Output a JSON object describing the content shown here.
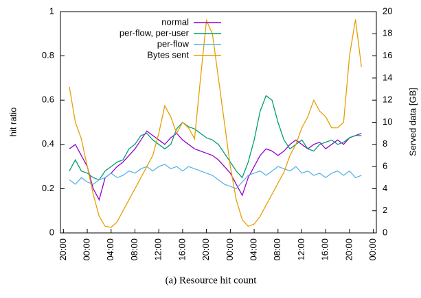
{
  "chart_data": {
    "type": "line",
    "caption": "(a) Resource hit count",
    "ylabel": "hit ratio",
    "y2label": "Served data [GB]",
    "x": [
      1,
      2,
      3,
      4,
      5,
      6,
      7,
      8,
      9,
      10,
      11,
      12,
      13,
      14,
      15,
      16,
      17,
      18,
      19,
      20,
      21,
      22,
      23,
      24,
      25,
      26,
      27,
      28,
      29,
      30,
      31,
      32,
      33,
      34,
      35,
      36,
      37,
      38,
      39,
      40,
      41,
      42,
      43,
      44,
      45,
      46,
      47,
      48,
      49,
      50
    ],
    "xlim": [
      -0.5,
      52.5
    ],
    "xticks": [
      {
        "value": 0,
        "label": "20:00"
      },
      {
        "value": 4,
        "label": "00:00"
      },
      {
        "value": 8,
        "label": "04:00"
      },
      {
        "value": 12,
        "label": "08:00"
      },
      {
        "value": 16,
        "label": "12:00"
      },
      {
        "value": 20,
        "label": "16:00"
      },
      {
        "value": 24,
        "label": "20:00"
      },
      {
        "value": 28,
        "label": "00:00"
      },
      {
        "value": 32,
        "label": "04:00"
      },
      {
        "value": 36,
        "label": "08:00"
      },
      {
        "value": 40,
        "label": "12:00"
      },
      {
        "value": 44,
        "label": "16:00"
      },
      {
        "value": 48,
        "label": "20:00"
      },
      {
        "value": 52,
        "label": "00:00"
      }
    ],
    "ylim": [
      0,
      1
    ],
    "yticks": [
      0,
      0.2,
      0.4,
      0.6,
      0.8,
      1
    ],
    "y2lim": [
      0,
      20
    ],
    "y2ticks": [
      0,
      2,
      4,
      6,
      8,
      10,
      12,
      14,
      16,
      18,
      20
    ],
    "legend": "upper center",
    "series": [
      {
        "name": "normal",
        "color": "#9400d3",
        "values": [
          0.38,
          0.4,
          0.35,
          0.3,
          0.2,
          0.15,
          0.25,
          0.27,
          0.3,
          0.32,
          0.35,
          0.38,
          0.42,
          0.46,
          0.44,
          0.42,
          0.4,
          0.43,
          0.45,
          0.42,
          0.4,
          0.38,
          0.37,
          0.36,
          0.35,
          0.33,
          0.3,
          0.27,
          0.22,
          0.17,
          0.25,
          0.3,
          0.35,
          0.38,
          0.37,
          0.35,
          0.37,
          0.4,
          0.42,
          0.4,
          0.38,
          0.4,
          0.41,
          0.38,
          0.4,
          0.42,
          0.4,
          0.43,
          0.44,
          0.45
        ]
      },
      {
        "name": "per-flow, per-user",
        "color": "#009e73",
        "values": [
          0.28,
          0.33,
          0.28,
          0.27,
          0.25,
          0.24,
          0.28,
          0.3,
          0.32,
          0.33,
          0.38,
          0.4,
          0.44,
          0.45,
          0.42,
          0.4,
          0.38,
          0.4,
          0.47,
          0.5,
          0.48,
          0.47,
          0.45,
          0.43,
          0.42,
          0.4,
          0.36,
          0.32,
          0.28,
          0.25,
          0.32,
          0.42,
          0.55,
          0.62,
          0.6,
          0.5,
          0.42,
          0.38,
          0.4,
          0.42,
          0.38,
          0.37,
          0.4,
          0.41,
          0.42,
          0.4,
          0.41,
          0.43,
          0.44,
          0.44
        ]
      },
      {
        "name": "per-flow",
        "color": "#56b4e9",
        "values": [
          0.24,
          0.22,
          0.25,
          0.23,
          0.22,
          0.24,
          0.25,
          0.27,
          0.25,
          0.26,
          0.28,
          0.27,
          0.29,
          0.3,
          0.28,
          0.3,
          0.31,
          0.29,
          0.3,
          0.28,
          0.3,
          0.29,
          0.28,
          0.27,
          0.26,
          0.24,
          0.22,
          0.21,
          0.2,
          0.23,
          0.26,
          0.27,
          0.28,
          0.26,
          0.28,
          0.3,
          0.29,
          0.28,
          0.3,
          0.27,
          0.28,
          0.26,
          0.27,
          0.25,
          0.27,
          0.28,
          0.26,
          0.28,
          0.25,
          0.26
        ]
      },
      {
        "name": "Bytes sent",
        "color": "#e69f00",
        "axis": "y2",
        "values": [
          13.2,
          10,
          8.5,
          6,
          3.5,
          1.5,
          0.6,
          0.5,
          1,
          2,
          3,
          4,
          5,
          6,
          7,
          9,
          11.5,
          10.5,
          9,
          10,
          9.5,
          8.5,
          14,
          19.2,
          18,
          14,
          10,
          6,
          3,
          1.2,
          0.6,
          0.8,
          1.5,
          2.5,
          3.5,
          4.5,
          5.5,
          7,
          8,
          9.5,
          10.5,
          12,
          11,
          10.5,
          9.5,
          9.5,
          10,
          16,
          19.3,
          15
        ]
      }
    ]
  }
}
